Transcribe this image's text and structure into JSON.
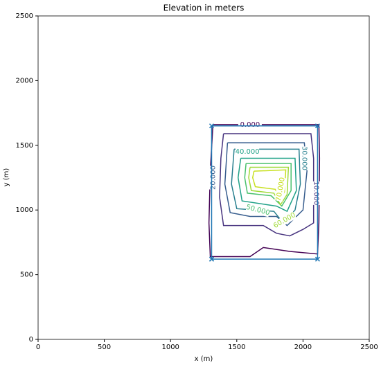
{
  "chart_data": {
    "type": "contour",
    "title": "Elevation in meters",
    "xlabel": "x (m)",
    "ylabel": "y (m)",
    "xlim": [
      0,
      2500
    ],
    "ylim": [
      0,
      2500
    ],
    "xticks": [
      0,
      500,
      1000,
      1500,
      2000,
      2500
    ],
    "yticks": [
      0,
      500,
      1000,
      1500,
      2000,
      2500
    ],
    "contours": [
      {
        "level": 0,
        "label": "0.000",
        "color": "#440154",
        "x": [
          1320,
          2120,
          2125,
          2120,
          2110,
          1900,
          1700,
          1600,
          1300,
          1290,
          1300,
          1320
        ],
        "y": [
          1660,
          1660,
          1400,
          900,
          660,
          680,
          710,
          640,
          640,
          900,
          1300,
          1660
        ]
      },
      {
        "level": 10,
        "label": "10.000",
        "color": "#46327e",
        "x": [
          1400,
          2060,
          2080,
          2080,
          2000,
          1900,
          1800,
          1700,
          1400,
          1370,
          1380,
          1400
        ],
        "y": [
          1590,
          1590,
          1400,
          900,
          850,
          800,
          820,
          880,
          880,
          1100,
          1400,
          1590
        ]
      },
      {
        "level": 20,
        "label": "20.000",
        "color": "#365c8d",
        "x": [
          1430,
          2010,
          2030,
          2000,
          1880,
          1800,
          1600,
          1450,
          1410,
          1430
        ],
        "y": [
          1520,
          1520,
          1300,
          1000,
          880,
          950,
          950,
          980,
          1200,
          1520
        ]
      },
      {
        "level": 30,
        "label": "30.000",
        "color": "#277f8e",
        "x": [
          1480,
          1970,
          1980,
          1940,
          1850,
          1780,
          1500,
          1460,
          1480
        ],
        "y": [
          1470,
          1470,
          1200,
          1000,
          900,
          990,
          1010,
          1200,
          1470
        ]
      },
      {
        "level": 40,
        "label": "40.000",
        "color": "#1fa187",
        "x": [
          1530,
          1940,
          1950,
          1880,
          1800,
          1540,
          1510,
          1530
        ],
        "y": [
          1400,
          1400,
          1150,
          990,
          1030,
          1070,
          1250,
          1400
        ]
      },
      {
        "level": 50,
        "label": "50.000",
        "color": "#4ac16d",
        "x": [
          1570,
          1910,
          1910,
          1840,
          1760,
          1580,
          1560,
          1570
        ],
        "y": [
          1360,
          1360,
          1150,
          1030,
          1110,
          1130,
          1250,
          1360
        ]
      },
      {
        "level": 60,
        "label": "60.000",
        "color": "#a0da39",
        "x": [
          1600,
          1890,
          1880,
          1830,
          1780,
          1610,
          1590,
          1600
        ],
        "y": [
          1330,
          1330,
          1120,
          1040,
          1130,
          1150,
          1250,
          1330
        ]
      },
      {
        "level": 70,
        "label": "70.000",
        "color": "#c8e020",
        "x": [
          1630,
          1870,
          1860,
          1830,
          1790,
          1640,
          1620,
          1630
        ],
        "y": [
          1300,
          1310,
          1140,
          1090,
          1160,
          1180,
          1250,
          1300
        ]
      }
    ],
    "boundary": {
      "color": "#1f77b4",
      "x": [
        1310,
        2110,
        2110,
        1310,
        1310
      ],
      "y": [
        620,
        620,
        1650,
        1650,
        620
      ]
    }
  }
}
